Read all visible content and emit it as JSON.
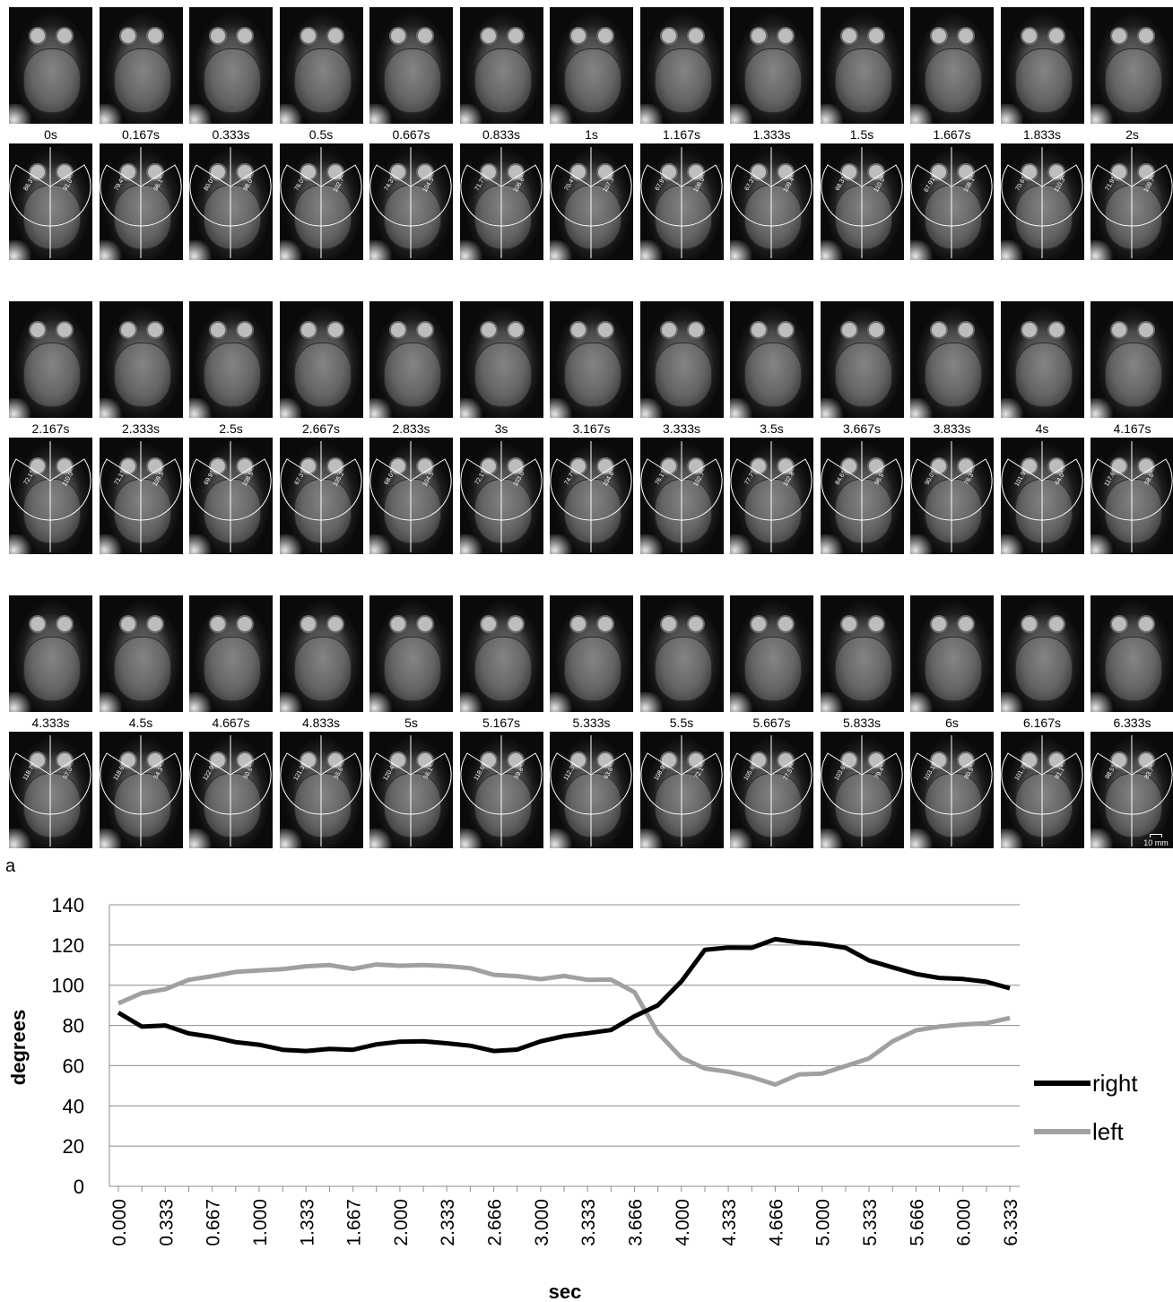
{
  "panel_label": "a",
  "scale_bar_label": "10 mm",
  "mri_rows": [
    {
      "times": [
        "0s",
        "0.167s",
        "0.333s",
        "0.5s",
        "0.667s",
        "0.833s",
        "1s",
        "1.167s",
        "1.333s",
        "1.5s",
        "1.667s",
        "1.833s",
        "2s"
      ],
      "angles_right": [
        "86.3°",
        "79.4°",
        "80.0°",
        "76.0°",
        "74.3°",
        "71.7°",
        "70.4°",
        "67.9°",
        "67.3°",
        "68.3°",
        "67.91°",
        "70.6°",
        "71.9°"
      ],
      "angles_left": [
        "91.0°",
        "96.1°",
        "98.0°",
        "102.7°",
        "104.5°",
        "106.6°",
        "107.3°",
        "108.0°",
        "109.4°",
        "110.0°",
        "108.1°",
        "110.3°",
        "109.7°"
      ]
    },
    {
      "times": [
        "2.167s",
        "2.333s",
        "2.5s",
        "2.667s",
        "2.833s",
        "3s",
        "3.167s",
        "3.333s",
        "3.5s",
        "3.667s",
        "3.833s",
        "4s",
        "4.167s"
      ],
      "angles_right": [
        "72.1°",
        "71.1°",
        "69.9°",
        "67.3°",
        "68.0°",
        "72.1°",
        "74.7°",
        "76.1°",
        "77.7°",
        "84.6°",
        "90.0°",
        "101.9°",
        "117.6°"
      ],
      "angles_left": [
        "110.0°",
        "109.5°",
        "108.5°",
        "105.2°",
        "104.5°",
        "103.0°",
        "104.6°",
        "102.7°",
        "102.8°",
        "96.5°",
        "76.3°",
        "64.0°",
        "58.6°"
      ]
    },
    {
      "times": [
        "4.333s",
        "4.5s",
        "4.667s",
        "4.833s",
        "5s",
        "5.167s",
        "5.333s",
        "5.5s",
        "5.667s",
        "5.833s",
        "6s",
        "6.167s",
        "6.333s"
      ],
      "angles_right": [
        "118.7°",
        "118.6°",
        "122.9°",
        "121.3°",
        "120.4°",
        "118.6°",
        "112.3°",
        "108.9°",
        "105.6°",
        "103.6°",
        "103.1°",
        "101.7°",
        "98.5°"
      ],
      "angles_left": [
        "57.0°",
        "54.3°",
        "50.6°",
        "55.6°",
        "56.1°",
        "59.8°",
        "63.6°",
        "72.1°",
        "77.57°",
        "79.4°",
        "80.5°",
        "81.1°",
        "83.7°"
      ]
    }
  ],
  "chart_data": {
    "type": "line",
    "xlabel": "sec",
    "ylabel": "degrees",
    "ylim": [
      0,
      140
    ],
    "yticks": [
      "0",
      "20",
      "40",
      "60",
      "80",
      "100",
      "120",
      "140"
    ],
    "grid": "horizontal",
    "legend_position": "right",
    "x_tick_labels": [
      "0.000",
      "0.333",
      "0.667",
      "1.000",
      "1.333",
      "1.667",
      "2.000",
      "2.333",
      "2.666",
      "3.000",
      "3.333",
      "3.666",
      "4.000",
      "4.333",
      "4.666",
      "5.000",
      "5.333",
      "5.666",
      "6.000",
      "6.333"
    ],
    "x": [
      0,
      0.167,
      0.333,
      0.5,
      0.667,
      0.833,
      1,
      1.167,
      1.333,
      1.5,
      1.667,
      1.833,
      2,
      2.167,
      2.333,
      2.5,
      2.667,
      2.833,
      3,
      3.167,
      3.333,
      3.5,
      3.667,
      3.833,
      4,
      4.167,
      4.333,
      4.5,
      4.667,
      4.833,
      5,
      5.167,
      5.333,
      5.5,
      5.667,
      5.833,
      6,
      6.167,
      6.333
    ],
    "series": [
      {
        "name": "right",
        "color": "#000000",
        "values": [
          86.3,
          79.4,
          80.0,
          76.0,
          74.3,
          71.7,
          70.4,
          67.9,
          67.3,
          68.3,
          67.9,
          70.6,
          71.9,
          72.1,
          71.1,
          69.9,
          67.3,
          68.0,
          72.1,
          74.7,
          76.1,
          77.7,
          84.6,
          90.0,
          101.9,
          117.6,
          118.7,
          118.6,
          122.9,
          121.3,
          120.4,
          118.6,
          112.3,
          108.9,
          105.6,
          103.6,
          103.1,
          101.7,
          98.5
        ]
      },
      {
        "name": "left",
        "color": "#a0a0a0",
        "values": [
          91.0,
          96.1,
          98.0,
          102.7,
          104.5,
          106.6,
          107.3,
          108.0,
          109.4,
          110.0,
          108.1,
          110.3,
          109.7,
          110.0,
          109.5,
          108.5,
          105.2,
          104.5,
          103.0,
          104.6,
          102.7,
          102.8,
          96.5,
          76.3,
          64.0,
          58.6,
          57.0,
          54.3,
          50.6,
          55.6,
          56.1,
          59.8,
          63.6,
          72.1,
          77.6,
          79.4,
          80.5,
          81.1,
          83.7
        ]
      }
    ]
  }
}
